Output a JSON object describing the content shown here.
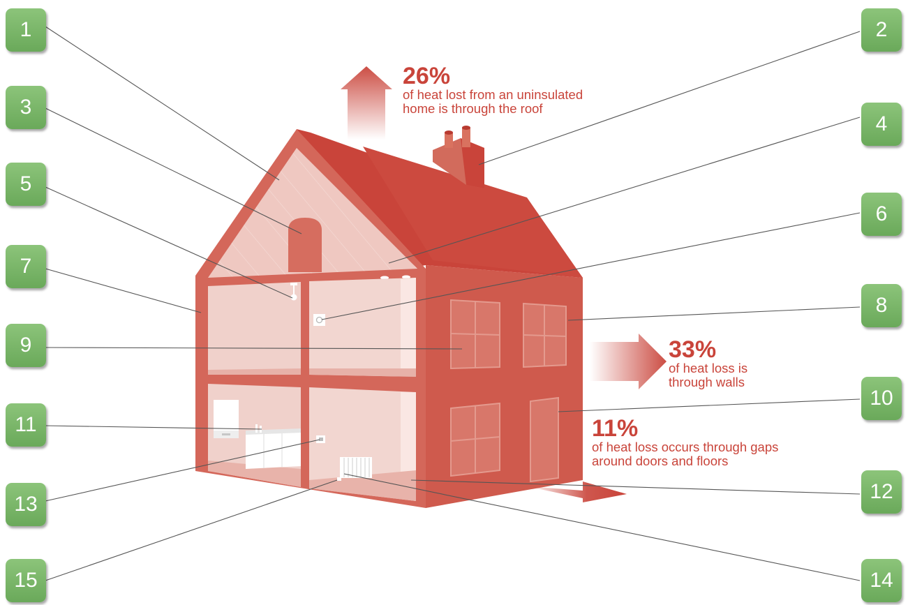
{
  "colors": {
    "accent": "#c9443a",
    "badge": "#78b466",
    "house_wall": "#cf5a4d",
    "roof": "#c9443a",
    "interior": "#f0d3ce"
  },
  "callouts": [
    {
      "number": "1"
    },
    {
      "number": "2"
    },
    {
      "number": "3"
    },
    {
      "number": "4"
    },
    {
      "number": "5"
    },
    {
      "number": "6"
    },
    {
      "number": "7"
    },
    {
      "number": "8"
    },
    {
      "number": "9"
    },
    {
      "number": "10"
    },
    {
      "number": "11"
    },
    {
      "number": "12"
    },
    {
      "number": "13"
    },
    {
      "number": "14"
    },
    {
      "number": "15"
    }
  ],
  "stats": {
    "roof": {
      "percent": "26%",
      "line1": "of heat lost from an uninsulated",
      "line2": "home is through the roof"
    },
    "walls": {
      "percent": "33%",
      "line1": "of heat loss is",
      "line2": "through walls"
    },
    "gaps": {
      "percent": "11%",
      "line1": "of heat loss occurs through gaps",
      "line2": "around doors and floors"
    }
  }
}
